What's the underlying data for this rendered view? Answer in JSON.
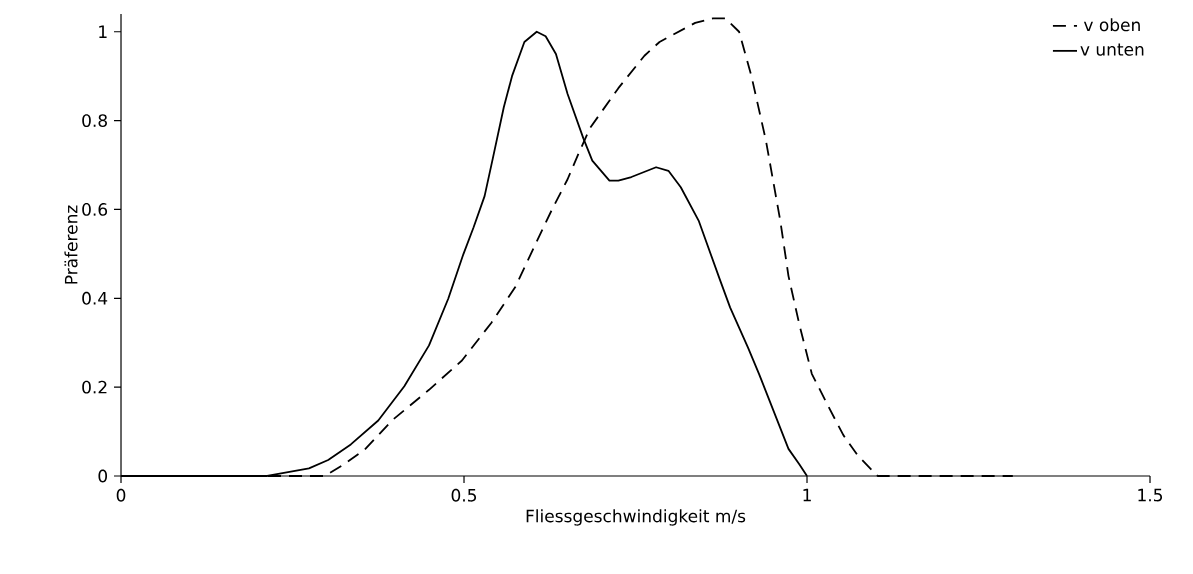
{
  "chart_data": {
    "type": "line",
    "xlabel": "Fliessgeschwindigkeit m/s",
    "ylabel": "Präferenz",
    "xlim": [
      0,
      1.5
    ],
    "xticks": [
      0,
      0.5,
      1,
      1.5
    ],
    "ylim": [
      0,
      1.04
    ],
    "yticks": [
      0,
      0.2,
      0.4,
      0.6,
      0.8,
      1
    ],
    "legend": "top right",
    "grid": false,
    "marker": "none",
    "series": [
      {
        "name": "v oben",
        "color": "#000000",
        "line_style": "dashed",
        "x": [
          0,
          0.297,
          0.324,
          0.355,
          0.395,
          0.449,
          0.497,
          0.54,
          0.575,
          0.603,
          0.628,
          0.651,
          0.667,
          0.684,
          0.725,
          0.763,
          0.785,
          0.837,
          0.863,
          0.881,
          0.901,
          0.919,
          0.94,
          0.961,
          0.973,
          0.989,
          1.007,
          1.033,
          1.053,
          1.074,
          1.103,
          1.3
        ],
        "values": [
          0,
          0,
          0.025,
          0.059,
          0.125,
          0.194,
          0.26,
          0.345,
          0.426,
          0.518,
          0.599,
          0.668,
          0.726,
          0.784,
          0.873,
          0.946,
          0.977,
          1.02,
          1.03,
          1.03,
          1.0,
          0.9,
          0.756,
          0.575,
          0.45,
          0.34,
          0.23,
          0.151,
          0.092,
          0.046,
          0,
          0
        ]
      },
      {
        "name": "v unten",
        "color": "#000000",
        "line_style": "solid",
        "x": [
          0,
          0.213,
          0.274,
          0.302,
          0.335,
          0.375,
          0.413,
          0.449,
          0.477,
          0.499,
          0.514,
          0.53,
          0.542,
          0.558,
          0.57,
          0.588,
          0.606,
          0.619,
          0.634,
          0.651,
          0.674,
          0.687,
          0.712,
          0.725,
          0.744,
          0.78,
          0.798,
          0.816,
          0.842,
          0.873,
          0.888,
          0.914,
          0.93,
          0.973,
          0.989,
          1.0
        ],
        "values": [
          0,
          0,
          0.017,
          0.036,
          0.071,
          0.125,
          0.202,
          0.294,
          0.399,
          0.499,
          0.56,
          0.63,
          0.715,
          0.83,
          0.9,
          0.977,
          1.0,
          0.99,
          0.95,
          0.86,
          0.76,
          0.71,
          0.665,
          0.665,
          0.673,
          0.695,
          0.687,
          0.65,
          0.575,
          0.442,
          0.379,
          0.289,
          0.23,
          0.061,
          0.026,
          0
        ]
      }
    ]
  }
}
